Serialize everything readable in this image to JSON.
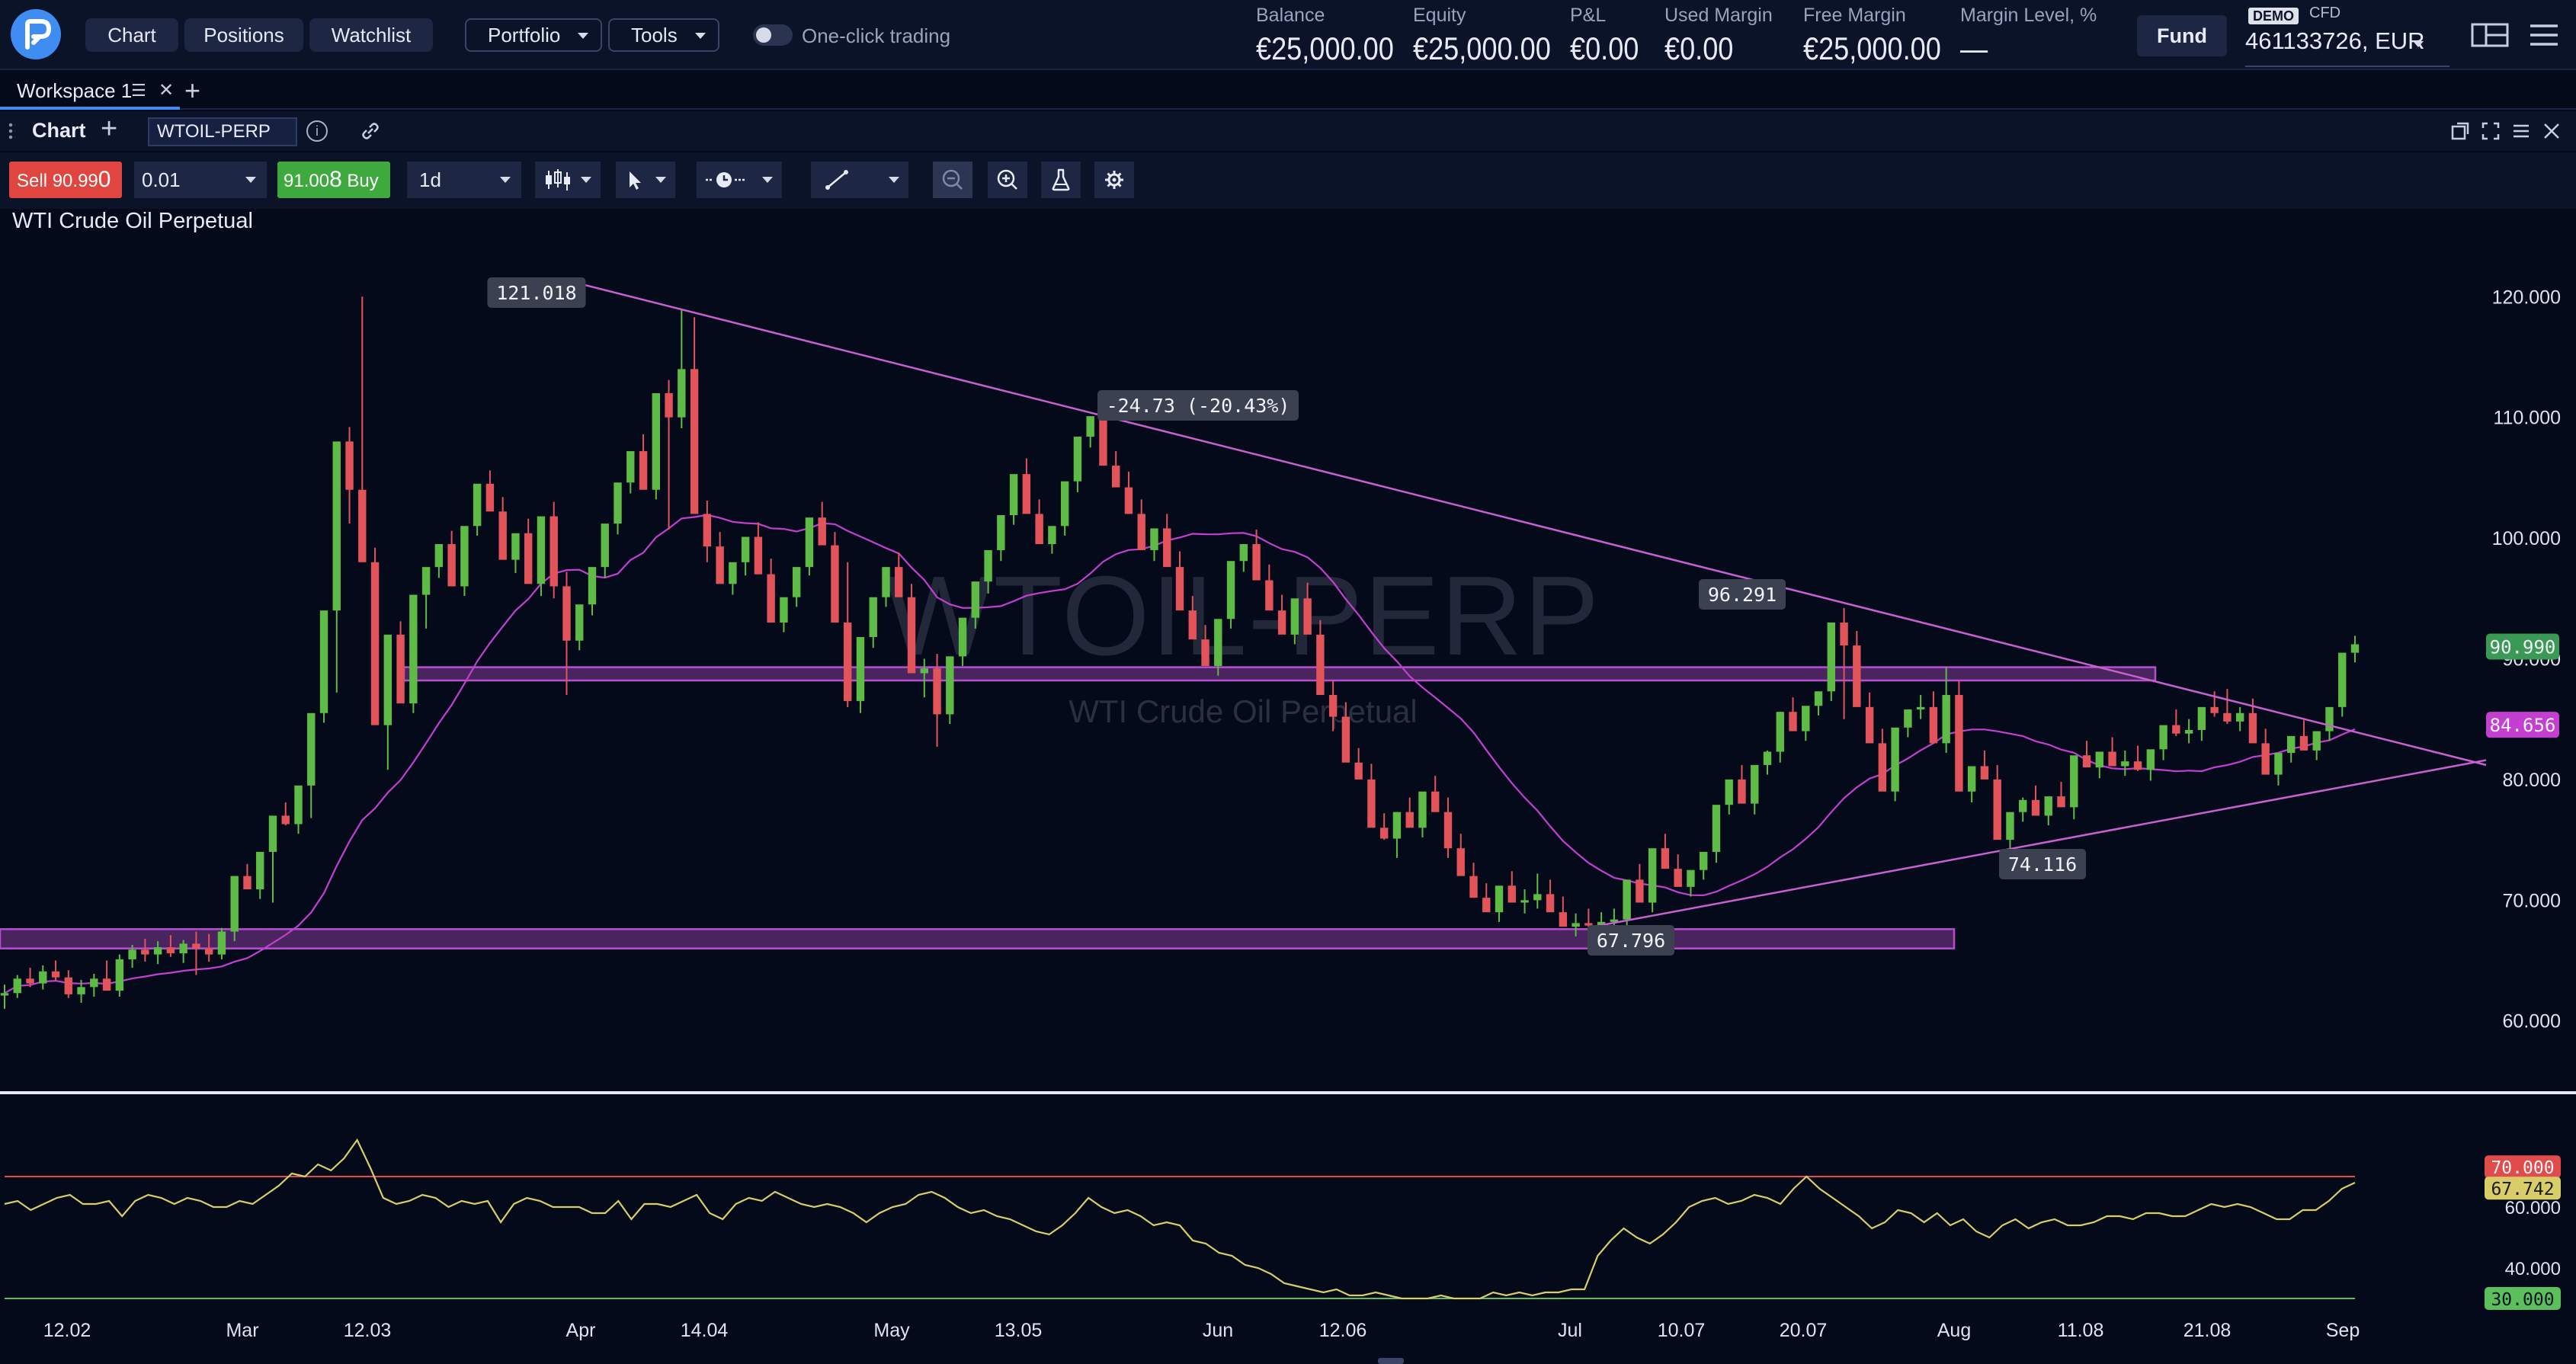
{
  "header": {
    "nav": {
      "chart": "Chart",
      "positions": "Positions",
      "watchlist": "Watchlist",
      "portfolio": "Portfolio",
      "tools": "Tools"
    },
    "one_click_trading": "One-click trading",
    "one_click_enabled": false,
    "account": {
      "balance_label": "Balance",
      "balance": "€25,000.00",
      "equity_label": "Equity",
      "equity": "€25,000.00",
      "pnl_label": "P&L",
      "pnl": "€0.00",
      "used_margin_label": "Used Margin",
      "used_margin": "€0.00",
      "free_margin_label": "Free Margin",
      "free_margin": "€25,000.00",
      "margin_level_label": "Margin Level, %",
      "margin_level": "—"
    },
    "fund": "Fund",
    "demo_badge": "DEMO",
    "account_type": "CFD",
    "account_id": "461133726, EUR"
  },
  "workspace": {
    "tab": "Workspace 1"
  },
  "panel": {
    "title": "Chart",
    "symbol": "WTOIL-PERP",
    "info_icon_text": "i"
  },
  "toolbar": {
    "sell_label": "Sell",
    "sell_price_main": "90.99",
    "sell_price_last": "0",
    "quantity": "0.01",
    "buy_price_main": "91.00",
    "buy_price_last": "8",
    "buy_label": "Buy",
    "timeframe": "1d"
  },
  "chart": {
    "instrument": "WTI Crude Oil Perpetual",
    "watermark": "WTOIL-PERP",
    "watermark_sub": "WTI Crude Oil Perpetual",
    "annotations": {
      "high": "121.018",
      "drop": "-24.73 (-20.43%)",
      "mid": "96.291",
      "low": "67.796",
      "higher_low": "74.116"
    },
    "price_badges": {
      "current": "90.990",
      "ma": "84.656"
    },
    "rsi_badges": {
      "upper": "70.000",
      "current": "67.742",
      "lower": "30.000"
    }
  },
  "colors": {
    "up": "#5dbb46",
    "down": "#e2545a",
    "ma": "#c23fd0",
    "trendline": "#c860d0",
    "zone": "#b84fd0",
    "rsi": "#d9cd6a",
    "rsi_upper": "#e04b4b",
    "rsi_lower": "#5bbf5b",
    "current_price": "#3a9a55",
    "ma_badge": "#c23fd0"
  },
  "chart_data": {
    "type": "candlestick",
    "title": "WTI Crude Oil Perpetual",
    "y_ticks": [
      120,
      110,
      100,
      90,
      80,
      70,
      60
    ],
    "y_tick_labels": [
      "120.000",
      "110.000",
      "100.000",
      "90.000",
      "80.000",
      "70.000",
      "60.000"
    ],
    "ylim": [
      54.3,
      126.9
    ],
    "x_tick_labels": [
      "12.02",
      "Mar",
      "12.03",
      "Apr",
      "14.04",
      "May",
      "13.05",
      "Jun",
      "12.06",
      "Jul",
      "10.07",
      "20.07",
      "Aug",
      "11.08",
      "21.08",
      "Sep"
    ],
    "candles_ohlc": [
      [
        62.1,
        63.0,
        61.0,
        62.3
      ],
      [
        62.3,
        63.8,
        61.9,
        63.5
      ],
      [
        63.5,
        64.4,
        62.8,
        63.1
      ],
      [
        63.1,
        64.6,
        62.6,
        64.1
      ],
      [
        64.1,
        65.0,
        63.3,
        63.6
      ],
      [
        63.6,
        64.2,
        61.9,
        62.2
      ],
      [
        62.2,
        63.4,
        61.5,
        62.8
      ],
      [
        62.8,
        63.9,
        62.0,
        63.5
      ],
      [
        63.5,
        65.0,
        62.7,
        62.5
      ],
      [
        62.5,
        65.5,
        62.0,
        65.1
      ],
      [
        65.1,
        66.3,
        64.4,
        65.9
      ],
      [
        65.9,
        66.8,
        64.9,
        65.5
      ],
      [
        65.5,
        66.6,
        64.7,
        66.1
      ],
      [
        66.1,
        67.1,
        65.3,
        65.6
      ],
      [
        65.6,
        66.7,
        64.8,
        66.4
      ],
      [
        66.4,
        67.4,
        63.8,
        66.0
      ],
      [
        66.0,
        67.2,
        64.9,
        65.5
      ],
      [
        65.5,
        67.7,
        65.1,
        67.4
      ],
      [
        67.4,
        68.4,
        66.6,
        72.0
      ],
      [
        72.0,
        73.0,
        71.2,
        70.9
      ],
      [
        70.9,
        71.9,
        70.1,
        74.0
      ],
      [
        74.0,
        75.3,
        69.8,
        77.0
      ],
      [
        77.0,
        78.1,
        76.2,
        76.3
      ],
      [
        76.3,
        77.4,
        75.5,
        79.5
      ],
      [
        79.5,
        80.7,
        76.8,
        85.5
      ],
      [
        85.5,
        86.7,
        84.7,
        94.0
      ],
      [
        94.0,
        95.5,
        87.2,
        108.0
      ],
      [
        108.0,
        109.2,
        101.2,
        104.0
      ],
      [
        104.0,
        120.0,
        101.0,
        98.0
      ],
      [
        98.0,
        99.2,
        89.2,
        84.5
      ],
      [
        84.5,
        85.8,
        80.8,
        92.0
      ],
      [
        92.0,
        93.1,
        87.5,
        86.3
      ],
      [
        86.3,
        87.5,
        85.5,
        95.3
      ],
      [
        95.3,
        96.6,
        92.5,
        97.6
      ],
      [
        97.6,
        98.8,
        96.7,
        99.5
      ],
      [
        99.5,
        100.6,
        98.7,
        96.0
      ],
      [
        96.0,
        97.2,
        95.2,
        101.0
      ],
      [
        101.0,
        102.3,
        100.2,
        104.5
      ],
      [
        104.5,
        105.6,
        103.6,
        102.2
      ],
      [
        102.2,
        103.4,
        101.4,
        98.2
      ],
      [
        98.2,
        99.3,
        97.1,
        100.4
      ],
      [
        100.4,
        101.6,
        99.5,
        96.2
      ],
      [
        96.2,
        97.4,
        95.2,
        101.8
      ],
      [
        101.8,
        103.0,
        95.0,
        96.0
      ],
      [
        96.0,
        97.2,
        87.0,
        91.5
      ],
      [
        91.5,
        92.7,
        90.7,
        94.5
      ],
      [
        94.5,
        95.8,
        93.6,
        97.6
      ],
      [
        97.6,
        98.7,
        96.7,
        101.2
      ],
      [
        101.2,
        102.3,
        100.3,
        104.6
      ],
      [
        104.6,
        105.9,
        103.7,
        107.2
      ],
      [
        107.2,
        108.6,
        106.3,
        104.0
      ],
      [
        104.0,
        110.6,
        103.2,
        112.0
      ],
      [
        112.0,
        113.1,
        100.7,
        110.0
      ],
      [
        110.0,
        119.0,
        109.1,
        114.0
      ],
      [
        114.0,
        118.3,
        113.1,
        102.0
      ],
      [
        102.0,
        103.1,
        98.0,
        99.3
      ],
      [
        99.3,
        100.5,
        98.5,
        96.2
      ],
      [
        96.2,
        97.4,
        95.3,
        98.0
      ],
      [
        98.0,
        99.1,
        96.9,
        100.1
      ],
      [
        100.1,
        101.3,
        99.3,
        97.0
      ],
      [
        97.0,
        98.3,
        96.1,
        93.0
      ],
      [
        93.0,
        94.3,
        92.2,
        95.1
      ],
      [
        95.1,
        96.3,
        94.3,
        97.6
      ],
      [
        97.6,
        100.1,
        96.9,
        101.7
      ],
      [
        101.7,
        103.0,
        100.9,
        99.4
      ],
      [
        99.4,
        100.5,
        98.6,
        93.0
      ],
      [
        93.0,
        98.0,
        86.0,
        86.5
      ],
      [
        86.5,
        87.8,
        85.5,
        91.8
      ],
      [
        91.8,
        93.0,
        90.9,
        95.1
      ],
      [
        95.1,
        96.3,
        94.3,
        97.6
      ],
      [
        97.6,
        98.8,
        96.8,
        95.1
      ],
      [
        95.1,
        96.2,
        94.2,
        88.8
      ],
      [
        88.8,
        90.0,
        86.8,
        89.2
      ],
      [
        89.2,
        90.4,
        82.7,
        85.4
      ],
      [
        85.4,
        86.6,
        84.6,
        90.2
      ],
      [
        90.2,
        91.4,
        89.4,
        93.4
      ],
      [
        93.4,
        94.6,
        92.5,
        96.4
      ],
      [
        96.4,
        97.6,
        95.4,
        99.0
      ],
      [
        99.0,
        100.3,
        98.1,
        101.9
      ],
      [
        101.9,
        103.0,
        101.1,
        105.3
      ],
      [
        105.3,
        106.6,
        104.5,
        102.0
      ],
      [
        102.0,
        103.2,
        101.1,
        99.5
      ],
      [
        99.5,
        100.8,
        98.7,
        101.0
      ],
      [
        101.0,
        102.3,
        100.2,
        104.7
      ],
      [
        104.7,
        105.8,
        103.8,
        108.4
      ],
      [
        108.4,
        109.6,
        107.5,
        110.1
      ],
      [
        110.1,
        111.3,
        109.2,
        106.0
      ],
      [
        106.0,
        107.2,
        105.2,
        104.2
      ],
      [
        104.2,
        105.5,
        103.4,
        102.0
      ],
      [
        102.0,
        103.2,
        101.2,
        99.0
      ],
      [
        99.0,
        100.3,
        98.1,
        100.8
      ],
      [
        100.8,
        102.0,
        99.9,
        97.6
      ],
      [
        97.6,
        98.9,
        96.7,
        94.0
      ],
      [
        94.0,
        95.2,
        93.2,
        91.6
      ],
      [
        91.6,
        92.8,
        90.8,
        89.4
      ],
      [
        89.4,
        90.7,
        88.6,
        93.3
      ],
      [
        93.3,
        94.6,
        92.5,
        98.1
      ],
      [
        98.1,
        99.2,
        97.2,
        99.5
      ],
      [
        99.5,
        100.7,
        98.6,
        96.5
      ],
      [
        96.5,
        97.8,
        95.7,
        94.0
      ],
      [
        94.0,
        95.3,
        93.0,
        92.0
      ],
      [
        92.0,
        93.1,
        91.2,
        95.0
      ],
      [
        95.0,
        96.3,
        94.2,
        92.0
      ],
      [
        92.0,
        93.2,
        91.1,
        87.0
      ],
      [
        87.0,
        88.2,
        84.0,
        85.2
      ],
      [
        85.2,
        86.4,
        84.4,
        81.4
      ],
      [
        81.4,
        82.6,
        80.6,
        80.0
      ],
      [
        80.0,
        81.3,
        79.2,
        76.0
      ],
      [
        76.0,
        77.2,
        75.0,
        75.1
      ],
      [
        75.1,
        76.3,
        73.5,
        77.3
      ],
      [
        77.3,
        78.5,
        76.5,
        76.0
      ],
      [
        76.0,
        77.1,
        75.2,
        79.0
      ],
      [
        79.0,
        80.3,
        78.2,
        77.3
      ],
      [
        77.3,
        78.5,
        73.5,
        74.3
      ],
      [
        74.3,
        75.5,
        73.4,
        72.0
      ],
      [
        72.0,
        73.1,
        71.1,
        70.2
      ],
      [
        70.2,
        71.4,
        69.3,
        69.0
      ],
      [
        69.0,
        70.3,
        68.2,
        71.2
      ],
      [
        71.2,
        72.4,
        70.3,
        69.8
      ],
      [
        69.8,
        70.9,
        68.9,
        70.0
      ],
      [
        70.0,
        72.2,
        69.3,
        70.5
      ],
      [
        70.5,
        71.7,
        69.7,
        69.0
      ],
      [
        69.0,
        70.3,
        67.9,
        67.8
      ],
      [
        67.8,
        68.9,
        67.0,
        68.1
      ],
      [
        68.1,
        69.3,
        67.2,
        67.9
      ],
      [
        67.9,
        69.0,
        67.1,
        68.2
      ],
      [
        68.2,
        69.3,
        67.3,
        68.4
      ],
      [
        68.4,
        69.6,
        67.6,
        71.7
      ],
      [
        71.7,
        73.0,
        70.9,
        69.8
      ],
      [
        69.8,
        71.0,
        69.0,
        74.3
      ],
      [
        74.3,
        75.5,
        73.3,
        72.6
      ],
      [
        72.6,
        73.8,
        71.8,
        71.1
      ],
      [
        71.1,
        72.3,
        70.3,
        72.5
      ],
      [
        72.5,
        73.8,
        71.7,
        74.0
      ],
      [
        74.0,
        75.2,
        73.1,
        77.9
      ],
      [
        77.9,
        79.1,
        77.1,
        80.0
      ],
      [
        80.0,
        81.2,
        79.1,
        78.0
      ],
      [
        78.0,
        79.2,
        77.1,
        81.2
      ],
      [
        81.2,
        82.4,
        80.4,
        82.3
      ],
      [
        82.3,
        83.5,
        81.4,
        85.6
      ],
      [
        85.6,
        86.8,
        84.7,
        84.0
      ],
      [
        84.0,
        85.2,
        83.2,
        86.1
      ],
      [
        86.1,
        87.3,
        85.3,
        87.3
      ],
      [
        87.3,
        88.5,
        86.5,
        93.0
      ],
      [
        93.0,
        94.2,
        85.0,
        91.1
      ],
      [
        91.1,
        92.3,
        90.2,
        86.0
      ],
      [
        86.0,
        87.2,
        85.1,
        83.0
      ],
      [
        83.0,
        84.2,
        82.0,
        79.0
      ],
      [
        79.0,
        80.2,
        78.2,
        84.3
      ],
      [
        84.3,
        85.5,
        83.5,
        85.8
      ],
      [
        85.8,
        87.0,
        85.0,
        86.0
      ],
      [
        86.0,
        87.3,
        85.2,
        83.0
      ],
      [
        83.0,
        89.3,
        82.2,
        87.0
      ],
      [
        87.0,
        88.2,
        85.0,
        79.0
      ],
      [
        79.0,
        80.2,
        78.1,
        81.1
      ],
      [
        81.1,
        82.4,
        80.3,
        80.0
      ],
      [
        80.0,
        81.2,
        78.0,
        75.0
      ],
      [
        75.0,
        76.2,
        74.2,
        77.3
      ],
      [
        77.3,
        78.5,
        76.5,
        78.3
      ],
      [
        78.3,
        79.5,
        77.4,
        77.0
      ],
      [
        77.0,
        78.2,
        76.2,
        78.6
      ],
      [
        78.6,
        79.8,
        77.8,
        77.7
      ],
      [
        77.7,
        78.9,
        76.7,
        82.0
      ],
      [
        82.0,
        83.2,
        81.2,
        81.0
      ],
      [
        81.0,
        82.2,
        80.1,
        82.3
      ],
      [
        82.3,
        83.5,
        81.4,
        81.1
      ],
      [
        81.1,
        82.4,
        80.3,
        81.5
      ],
      [
        81.5,
        82.8,
        80.7,
        80.8
      ],
      [
        80.8,
        82.0,
        79.9,
        82.5
      ],
      [
        82.5,
        83.8,
        81.6,
        84.5
      ],
      [
        84.5,
        85.8,
        83.6,
        83.8
      ],
      [
        83.8,
        85.0,
        83.0,
        84.1
      ],
      [
        84.1,
        85.3,
        83.2,
        86.0
      ],
      [
        86.0,
        87.3,
        85.2,
        85.5
      ],
      [
        85.5,
        87.5,
        84.6,
        84.8
      ],
      [
        84.8,
        86.0,
        84.0,
        85.5
      ],
      [
        85.5,
        86.7,
        84.7,
        83.0
      ],
      [
        83.0,
        84.2,
        81.0,
        80.4
      ],
      [
        80.4,
        81.6,
        79.5,
        82.2
      ],
      [
        82.2,
        83.4,
        81.4,
        83.6
      ],
      [
        83.6,
        84.9,
        82.8,
        82.4
      ],
      [
        82.4,
        83.6,
        81.6,
        84.0
      ],
      [
        84.0,
        85.2,
        83.2,
        86.0
      ],
      [
        86.0,
        87.3,
        85.2,
        90.5
      ],
      [
        90.5,
        91.9,
        89.7,
        91.2
      ]
    ],
    "indicators": {
      "moving_average_current": 84.656,
      "horizontal_zones": [
        [
          88.2,
          89.3
        ],
        [
          66.0,
          67.6
        ]
      ],
      "trendlines": [
        {
          "from_price": 121.018,
          "to_price": 81.2
        },
        {
          "from_price": 67.796,
          "to_price": 81.6
        }
      ],
      "measure": {
        "from": 121.018,
        "to": 96.291,
        "change": -24.73,
        "change_pct": -20.43
      }
    },
    "rsi": {
      "type": "line",
      "ylim": [
        24,
        96
      ],
      "levels": [
        70,
        30
      ],
      "current": 67.742,
      "y_tick_labels": [
        "70.000",
        "60.000",
        "40.000",
        "30.000"
      ],
      "values": [
        61,
        62,
        59,
        61,
        63,
        64,
        61,
        61,
        62,
        57,
        62,
        64,
        63,
        61,
        63,
        62,
        60,
        60,
        62,
        61,
        64,
        67,
        71,
        70,
        74,
        72,
        76,
        82,
        73,
        63,
        61,
        62,
        64,
        63,
        60,
        62,
        61,
        62,
        55,
        61,
        63,
        62,
        60,
        60,
        60,
        58,
        58,
        62,
        56,
        61,
        61,
        60,
        62,
        64,
        58,
        56,
        61,
        63,
        62,
        65,
        63,
        61,
        60,
        61,
        60,
        58,
        55,
        58,
        60,
        61,
        64,
        65,
        63,
        60,
        58,
        59,
        57,
        56,
        54,
        52,
        51,
        54,
        58,
        63,
        60,
        58,
        59,
        57,
        54,
        55,
        54,
        49,
        48,
        45,
        44,
        41,
        40,
        38,
        35,
        34,
        33,
        32,
        33,
        31,
        31,
        32,
        31,
        30,
        30,
        30,
        31,
        30,
        30,
        30,
        32,
        31,
        32,
        31,
        32,
        32,
        33,
        33,
        44,
        49,
        53,
        50,
        48,
        51,
        55,
        60,
        62,
        63,
        61,
        62,
        64,
        63,
        61,
        66,
        70,
        66,
        63,
        60,
        57,
        53,
        55,
        59,
        58,
        55,
        58,
        54,
        56,
        52,
        50,
        54,
        56,
        53,
        55,
        56,
        54,
        54,
        55,
        57,
        57,
        56,
        58,
        58,
        57,
        57,
        59,
        61,
        60,
        61,
        60,
        58,
        56,
        56,
        59,
        59,
        62,
        66,
        68
      ]
    }
  }
}
